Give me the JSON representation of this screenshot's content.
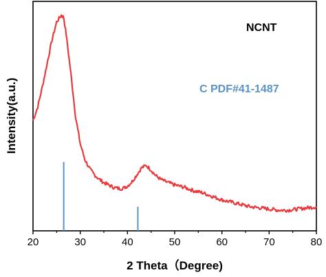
{
  "chart_data": {
    "type": "line",
    "xlabel": "2 Theta（Degree)",
    "ylabel": "Intensity(a.u.)",
    "xlim": [
      20,
      80
    ],
    "x_ticks": [
      20,
      30,
      40,
      50,
      60,
      70,
      80
    ],
    "x_tick_labels": [
      "20",
      "30",
      "40",
      "50",
      "60",
      "70",
      "80"
    ],
    "y_ticks_shown": false,
    "ylim": [
      0,
      100
    ],
    "grid": false,
    "series": [
      {
        "name": "NCNT",
        "color": "#e8393d",
        "points": [
          [
            20,
            48
          ],
          [
            21,
            54
          ],
          [
            22,
            63
          ],
          [
            23,
            73
          ],
          [
            24,
            83
          ],
          [
            25,
            91
          ],
          [
            26,
            94
          ],
          [
            26.5,
            93
          ],
          [
            27,
            86
          ],
          [
            28,
            69
          ],
          [
            29,
            50
          ],
          [
            30,
            38
          ],
          [
            31,
            31
          ],
          [
            32,
            27
          ],
          [
            33,
            24.5
          ],
          [
            34,
            22.5
          ],
          [
            35,
            21
          ],
          [
            36,
            20
          ],
          [
            37,
            19
          ],
          [
            38,
            18.5
          ],
          [
            39,
            18.5
          ],
          [
            40,
            19.5
          ],
          [
            41,
            21.5
          ],
          [
            42,
            24.5
          ],
          [
            43,
            27.5
          ],
          [
            44,
            28.5
          ],
          [
            45,
            26.5
          ],
          [
            46,
            24
          ],
          [
            47,
            22.5
          ],
          [
            48,
            21.5
          ],
          [
            50,
            20
          ],
          [
            52,
            19
          ],
          [
            54,
            17.5
          ],
          [
            56,
            16.5
          ],
          [
            58,
            15
          ],
          [
            60,
            13.5
          ],
          [
            62,
            12.5
          ],
          [
            64,
            11.5
          ],
          [
            66,
            10.5
          ],
          [
            68,
            10
          ],
          [
            70,
            9.5
          ],
          [
            72,
            9
          ],
          [
            74,
            9
          ],
          [
            76,
            9.5
          ],
          [
            78,
            10
          ],
          [
            80,
            10.5
          ]
        ]
      }
    ],
    "reference": {
      "name": "C PDF#41-1487",
      "color": "#5b93c7",
      "sticks": [
        {
          "x": 26.5,
          "height": 30
        },
        {
          "x": 42.2,
          "height": 10.5
        }
      ]
    },
    "annotations": [
      {
        "text": "NCNT",
        "color": "#000000"
      },
      {
        "text": "C PDF#41-1487",
        "color": "#5b93c7"
      }
    ]
  }
}
